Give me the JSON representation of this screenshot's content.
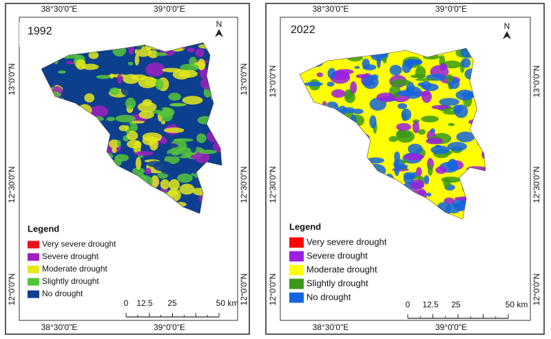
{
  "panels": [
    {
      "year": "1992",
      "top_labels": [
        "38°30'0\"E",
        "39°0'0\"E"
      ],
      "bottom_labels": [
        "38°30'0\"E",
        "39°0'0\"E"
      ],
      "left_labels": [
        "13°0'0\"N",
        "12°30'0\"N",
        "12°0'0\"N"
      ],
      "right_labels": [
        "13°0'0\"N",
        "12°30'0\"N",
        "12°0'0\"N"
      ],
      "north": "N",
      "legend": {
        "title": "Legend",
        "items": [
          {
            "label": "Very severe drought",
            "color": "#e8141c"
          },
          {
            "label": "Severe drought",
            "color": "#a020c0"
          },
          {
            "label": "Moderate drought",
            "color": "#e3e81a"
          },
          {
            "label": "Slightly drought",
            "color": "#55c43a"
          },
          {
            "label": "No drought",
            "color": "#0d3f8f"
          }
        ]
      },
      "scale_labels": [
        "0",
        "12.5",
        "25",
        "50 km"
      ]
    },
    {
      "year": "2022",
      "top_labels": [
        "38°30'0\"E",
        "39°0'0\"E"
      ],
      "bottom_labels": [
        "38°30'0\"E",
        "39°0'0\"E"
      ],
      "left_labels": [
        "13°0'0\"N",
        "12°30'0\"N",
        "12°0'0\"N"
      ],
      "right_labels": [
        "13°0'0\"N",
        "12°30'0\"N",
        "12°0'0\"N"
      ],
      "north": "N",
      "legend": {
        "title": "Legend",
        "items": [
          {
            "label": "Very severe drought",
            "color": "#ff0000"
          },
          {
            "label": "Severe drought",
            "color": "#9b1fe0"
          },
          {
            "label": "Moderate drought",
            "color": "#ffff00"
          },
          {
            "label": "Slightly drought",
            "color": "#3a9a1a"
          },
          {
            "label": "No drought",
            "color": "#1565e0"
          }
        ]
      },
      "scale_labels": [
        "0",
        "12.5",
        "25",
        "50 km"
      ]
    }
  ]
}
